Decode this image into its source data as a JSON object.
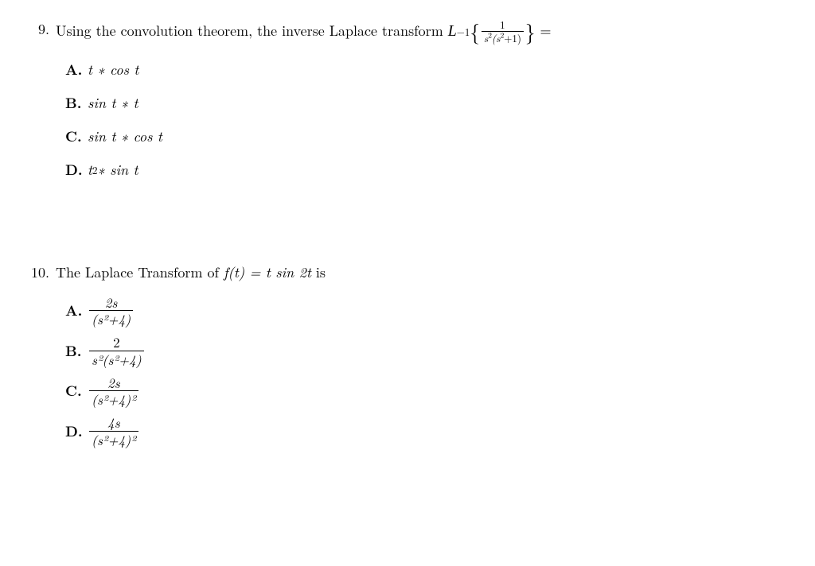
{
  "q9": {
    "number": "9.",
    "stem_prefix": "Using the convolution theorem, the inverse Laplace transform ",
    "laplace_symbol": "L",
    "exponent": "−1",
    "frac_num": "1",
    "frac_den_a": "s",
    "frac_den_b": "2",
    "frac_den_c": "(s",
    "frac_den_d": "2",
    "frac_den_e": "+1)",
    "stem_suffix": " =",
    "options": {
      "A": {
        "label": "A.",
        "text": "t ∗ cos t"
      },
      "B": {
        "label": "B.",
        "text": "sin t ∗ t"
      },
      "C": {
        "label": "C.",
        "text": "sin t ∗ cos t"
      },
      "D": {
        "label": "D.",
        "prefix": "t",
        "sup": "2",
        "suffix": " ∗ sin t"
      }
    }
  },
  "q10": {
    "number": "10.",
    "stem_prefix": "The Laplace Transform of ",
    "func": "f(t) = t sin 2t",
    "stem_suffix": " is",
    "options": {
      "A": {
        "label": "A.",
        "num": "2s",
        "den": "(s²+4)"
      },
      "B": {
        "label": "B.",
        "num": "2",
        "den": "s²(s²+4)"
      },
      "C": {
        "label": "C.",
        "num": "2s",
        "den": "(s²+4)²"
      },
      "D": {
        "label": "D.",
        "num": "4s",
        "den": "(s²+4)²"
      }
    }
  }
}
